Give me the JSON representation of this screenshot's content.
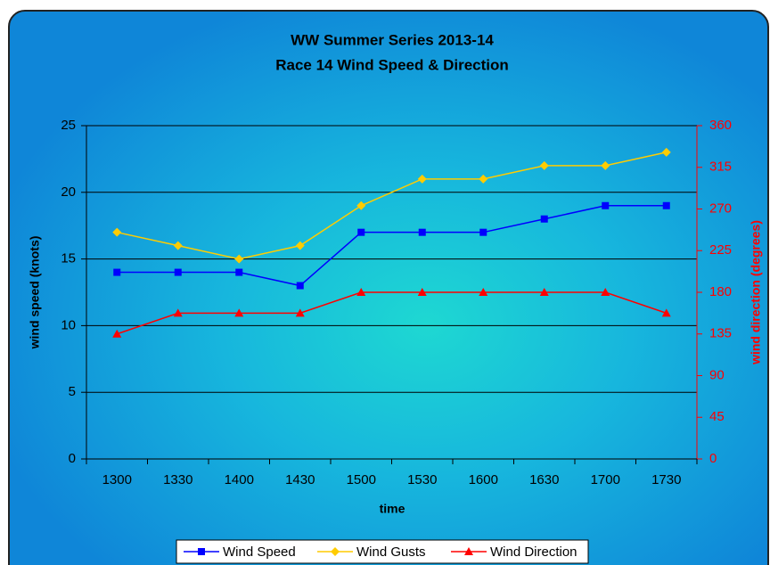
{
  "chart_data": {
    "type": "line",
    "title": "WW Summer Series 2013-14",
    "subtitle": "Race 14 Wind Speed & Direction",
    "x_label": "time",
    "y_label": "wind speed (knots)",
    "y2_label": "wind direction (degrees)",
    "categories": [
      "1300",
      "1330",
      "1400",
      "1430",
      "1500",
      "1530",
      "1600",
      "1630",
      "1700",
      "1730"
    ],
    "series": [
      {
        "name": "Wind Speed",
        "color": "#0000ff",
        "marker": "square",
        "values": [
          14,
          14,
          14,
          13,
          17,
          17,
          17,
          18,
          19,
          19
        ]
      },
      {
        "name": "Wind Gusts",
        "color": "#ffcc00",
        "marker": "diamond",
        "values": [
          17,
          16,
          15,
          16,
          19,
          21,
          21,
          22,
          22,
          23
        ]
      },
      {
        "name": "Wind Direction",
        "color": "#ff0000",
        "marker": "triangle",
        "axis": "y2",
        "values": [
          135,
          157.5,
          157.5,
          157.5,
          180,
          180,
          180,
          180,
          180,
          157.5
        ]
      }
    ],
    "ylim": [
      0,
      25
    ],
    "yticks": [
      0,
      5,
      10,
      15,
      20,
      25
    ],
    "y2lim": [
      0,
      360
    ],
    "y2ticks": [
      0,
      45,
      90,
      135,
      180,
      225,
      270,
      315,
      360
    ],
    "y2color": "#ff0000",
    "grid": true,
    "legend": "bottom"
  }
}
